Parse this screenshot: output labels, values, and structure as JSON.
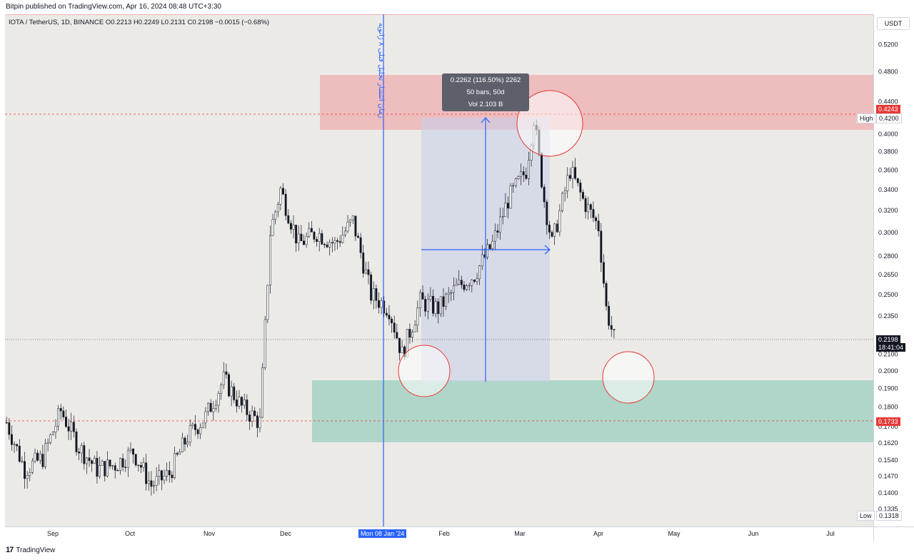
{
  "header": {
    "published": "Bitpin published on TradingView.com, Apr 16, 2024 08:48 UTC+3:30"
  },
  "symbol": {
    "line": "IOTA / TetherUS, 1D, BINANCE  O0.2213  H0.2249  L0.2131  C0.2198  −0.0015 (−0.68%)"
  },
  "price_axis": {
    "unit": "USDT",
    "current_price": "0.2198",
    "countdown": "18:41:04",
    "high_label": "High",
    "high_price": "0.4200",
    "low_label": "Low",
    "low_price": "0.1318",
    "red_level": "0.4243",
    "support_level": "0.1733"
  },
  "measure": {
    "line1": "0.2262 (116.50%) 2262",
    "line2": "50 bars, 50d",
    "line3": "Vol 2.103 B"
  },
  "annotation": {
    "vertical_text": "زمان انتشار تحلیل قبلی ۸ ژانویه"
  },
  "time_axis": {
    "cursor_label": "Mon 08 Jan '24"
  },
  "footer": {
    "brand": "TradingView"
  },
  "colors": {
    "up": "#131722",
    "resistance_zone": "#f0a5a8",
    "support_zone": "#9ccfbf",
    "measure_zone": "#c9cfe8",
    "accent": "#2962ff",
    "red": "#e53935"
  },
  "chart_data": {
    "type": "candlestick",
    "symbol": "IOTA / TetherUS",
    "interval": "1D",
    "exchange": "BINANCE",
    "y_scale": "log",
    "y_ticks": [
      "0.5200",
      "0.4800",
      "0.4400",
      "0.4200",
      "0.4000",
      "0.3800",
      "0.3600",
      "0.3400",
      "0.3200",
      "0.3000",
      "0.2800",
      "0.2650",
      "0.2500",
      "0.2350",
      "0.2200",
      "0.2100",
      "0.2000",
      "0.1900",
      "0.1800",
      "0.1700",
      "0.1620",
      "0.1540",
      "0.1470",
      "0.1400",
      "0.1335"
    ],
    "x_ticks": [
      "Sep",
      "Oct",
      "Nov",
      "Dec",
      "Feb",
      "Mar",
      "Apr",
      "May",
      "Jun",
      "Jul"
    ],
    "ohlc_points": [
      [
        "2023-08-24",
        0.172
      ],
      [
        "2023-08-31",
        0.15
      ],
      [
        "2023-09-07",
        0.155
      ],
      [
        "2023-09-14",
        0.178
      ],
      [
        "2023-09-21",
        0.16
      ],
      [
        "2023-09-28",
        0.15
      ],
      [
        "2023-10-05",
        0.152
      ],
      [
        "2023-10-12",
        0.158
      ],
      [
        "2023-10-19",
        0.143
      ],
      [
        "2023-10-26",
        0.148
      ],
      [
        "2023-11-02",
        0.165
      ],
      [
        "2023-11-09",
        0.175
      ],
      [
        "2023-11-16",
        0.195
      ],
      [
        "2023-11-23",
        0.18
      ],
      [
        "2023-11-30",
        0.172
      ],
      [
        "2023-12-04",
        0.3
      ],
      [
        "2023-12-08",
        0.34
      ],
      [
        "2023-12-15",
        0.29
      ],
      [
        "2023-12-22",
        0.3
      ],
      [
        "2023-12-29",
        0.29
      ],
      [
        "2024-01-05",
        0.31
      ],
      [
        "2024-01-12",
        0.25
      ],
      [
        "2024-01-19",
        0.24
      ],
      [
        "2024-01-24",
        0.21
      ],
      [
        "2024-01-31",
        0.245
      ],
      [
        "2024-02-07",
        0.24
      ],
      [
        "2024-02-14",
        0.255
      ],
      [
        "2024-02-21",
        0.265
      ],
      [
        "2024-02-28",
        0.29
      ],
      [
        "2024-03-05",
        0.33
      ],
      [
        "2024-03-12",
        0.36
      ],
      [
        "2024-03-15",
        0.42
      ],
      [
        "2024-03-19",
        0.33
      ],
      [
        "2024-03-22",
        0.29
      ],
      [
        "2024-03-29",
        0.36
      ],
      [
        "2024-04-03",
        0.33
      ],
      [
        "2024-04-09",
        0.305
      ],
      [
        "2024-04-12",
        0.24
      ],
      [
        "2024-04-15",
        0.2198
      ]
    ]
  }
}
